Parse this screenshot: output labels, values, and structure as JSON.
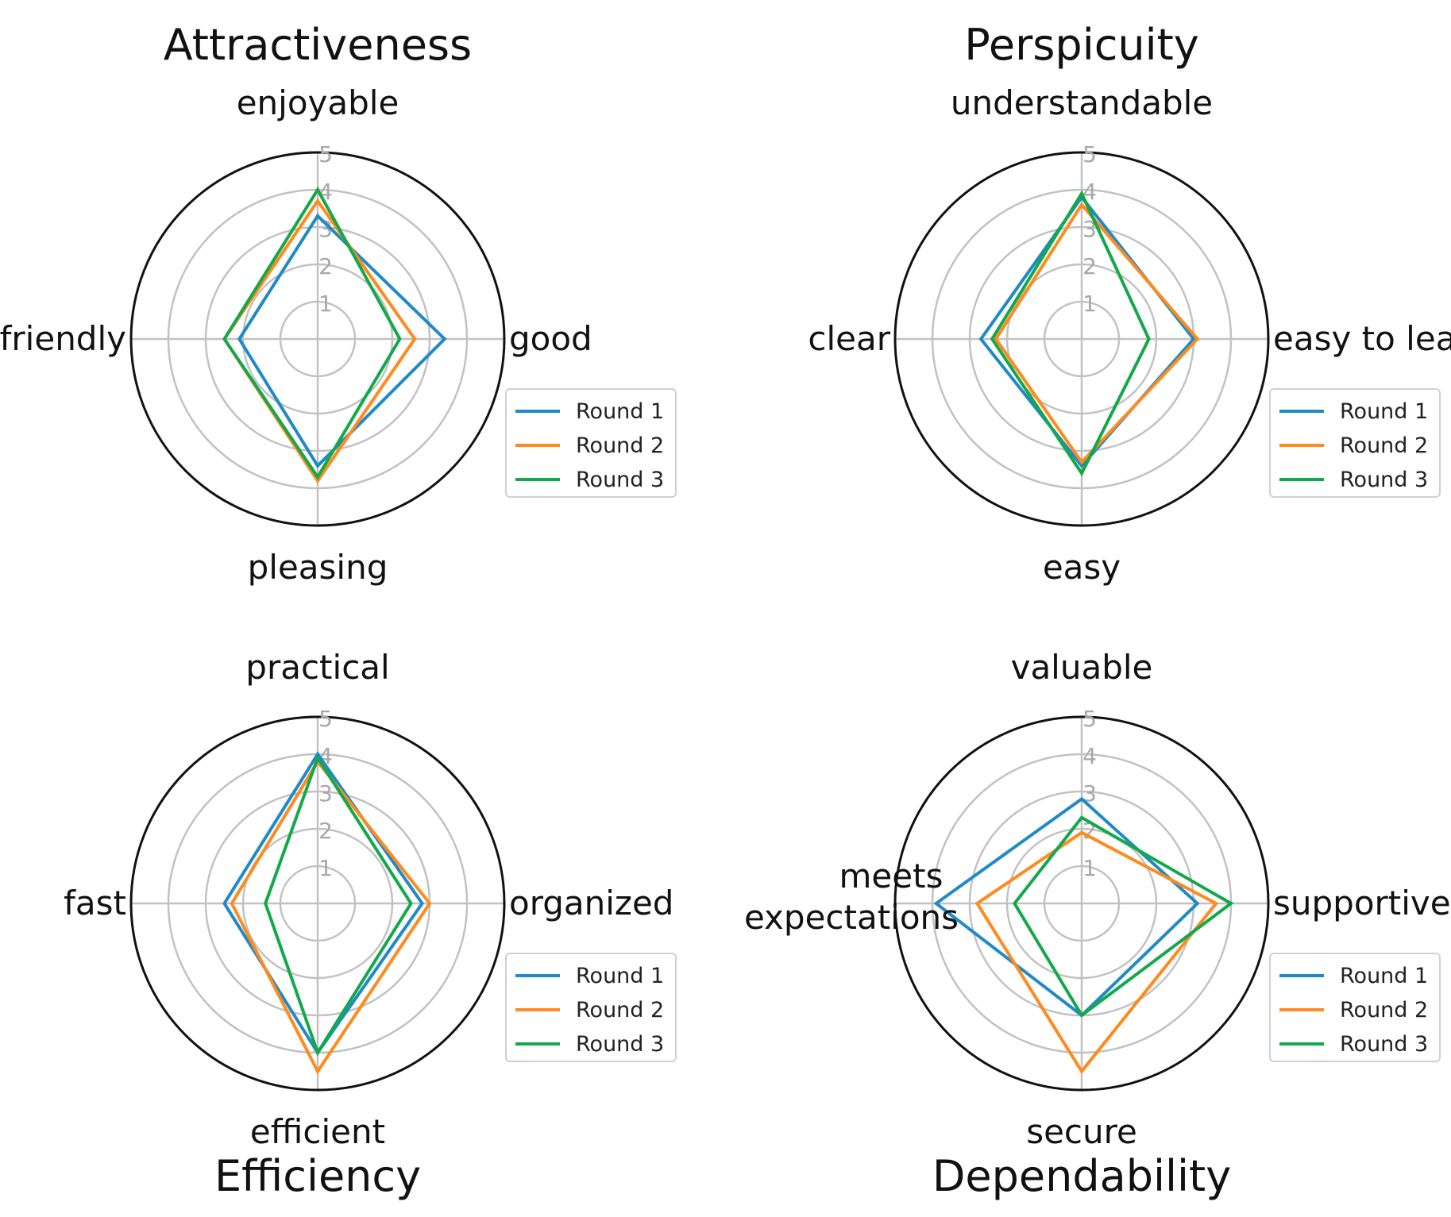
{
  "chart_data": [
    {
      "type": "radar",
      "title": "Attractiveness",
      "axes": [
        "enjoyable",
        "good",
        "pleasing",
        "friendly"
      ],
      "rlim": [
        0,
        5
      ],
      "rticks": [
        1,
        2,
        3,
        4,
        5
      ],
      "series": [
        {
          "name": "Round 1",
          "values": [
            3.3,
            3.4,
            3.4,
            2.1
          ]
        },
        {
          "name": "Round 2",
          "values": [
            3.7,
            2.6,
            3.8,
            2.5
          ]
        },
        {
          "name": "Round 3",
          "values": [
            4.0,
            2.2,
            3.7,
            2.5
          ]
        }
      ],
      "legend": "right"
    },
    {
      "type": "radar",
      "title": "Perspicuity",
      "axes": [
        "understandable",
        "easy to learn",
        "easy",
        "clear"
      ],
      "rlim": [
        0,
        5
      ],
      "rticks": [
        1,
        2,
        3,
        4,
        5
      ],
      "series": [
        {
          "name": "Round 1",
          "values": [
            3.8,
            3.0,
            3.4,
            2.7
          ]
        },
        {
          "name": "Round 2",
          "values": [
            3.6,
            3.1,
            3.3,
            2.3
          ]
        },
        {
          "name": "Round 3",
          "values": [
            3.9,
            1.8,
            3.6,
            2.4
          ]
        }
      ],
      "legend": "right"
    },
    {
      "type": "radar",
      "title": "Efficiency",
      "axes": [
        "practical",
        "organized",
        "efficient",
        "fast"
      ],
      "rlim": [
        0,
        5
      ],
      "rticks": [
        1,
        2,
        3,
        4,
        5
      ],
      "series": [
        {
          "name": "Round 1",
          "values": [
            4.0,
            2.8,
            4.0,
            2.5
          ]
        },
        {
          "name": "Round 2",
          "values": [
            3.8,
            3.0,
            4.5,
            2.3
          ]
        },
        {
          "name": "Round 3",
          "values": [
            3.9,
            2.5,
            4.0,
            1.4
          ]
        }
      ],
      "legend": "right"
    },
    {
      "type": "radar",
      "title": "Dependability",
      "axes": [
        "valuable",
        "supportive",
        "secure",
        "meets expectations"
      ],
      "rlim": [
        0,
        5
      ],
      "rticks": [
        1,
        2,
        3,
        4,
        5
      ],
      "series": [
        {
          "name": "Round 1",
          "values": [
            2.8,
            3.1,
            3.0,
            3.9
          ]
        },
        {
          "name": "Round 2",
          "values": [
            1.9,
            3.6,
            4.5,
            2.8
          ]
        },
        {
          "name": "Round 3",
          "values": [
            2.3,
            4.0,
            3.0,
            1.8
          ]
        }
      ],
      "legend": "right"
    }
  ],
  "colors": {
    "round1": "#1f8ac8",
    "round2": "#ff8a1e",
    "round3": "#13a84a",
    "grid": "#c2c2c2",
    "outer": "#111111",
    "tick": "#a8a8a8"
  }
}
